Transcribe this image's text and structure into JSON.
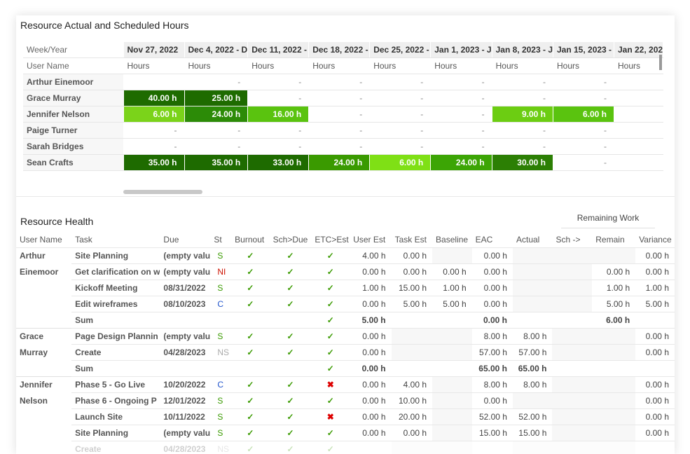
{
  "top": {
    "title": "Resource Actual and Scheduled Hours",
    "week_label": "Week/Year",
    "user_label": "User Name",
    "weeks": [
      "Nov 27, 2022",
      "Dec 4, 2022 - D",
      "Dec 11, 2022 - ",
      "Dec 18, 2022 - ",
      "Dec 25, 2022 - ",
      "Jan 1, 2023 - J",
      "Jan 8, 2023 - J",
      "Jan 15, 2023 - ",
      "Jan 22, 202"
    ],
    "hours_label": "Hours",
    "rows": [
      {
        "name": "Arthur Einemoor",
        "cells": [
          "",
          "-",
          "-",
          "-",
          "-",
          "-",
          "-",
          "-",
          ""
        ]
      },
      {
        "name": "Grace Murray",
        "cells": [
          "40.00 h",
          "25.00 h",
          "-",
          "-",
          "-",
          "-",
          "-",
          "-",
          ""
        ]
      },
      {
        "name": "Jennifer Nelson",
        "cells": [
          "6.00 h",
          "24.00 h",
          "16.00 h",
          "-",
          "-",
          "-",
          "9.00 h",
          "6.00 h",
          ""
        ]
      },
      {
        "name": "Paige Turner",
        "cells": [
          "-",
          "-",
          "-",
          "-",
          "-",
          "-",
          "-",
          "-",
          ""
        ]
      },
      {
        "name": "Sarah Bridges",
        "cells": [
          "-",
          "-",
          "-",
          "-",
          "-",
          "-",
          "-",
          "-",
          ""
        ]
      },
      {
        "name": "Sean Crafts",
        "cells": [
          "35.00 h",
          "35.00 h",
          "33.00 h",
          "24.00 h",
          "6.00 h",
          "24.00 h",
          "30.00 h",
          "-",
          ""
        ]
      }
    ],
    "cell_colors": [
      [
        "",
        "",
        "",
        "",
        "",
        "",
        "",
        "",
        ""
      ],
      [
        "#1e6b00",
        "#1e6b00",
        "",
        "",
        "",
        "",
        "",
        "",
        ""
      ],
      [
        "#7bd31a",
        "#2c8b07",
        "#5ac30f",
        "",
        "",
        "",
        "#6ccd12",
        "#5ac30f",
        ""
      ],
      [
        "",
        "",
        "",
        "",
        "",
        "",
        "",
        "",
        ""
      ],
      [
        "",
        "",
        "",
        "",
        "",
        "",
        "",
        "",
        ""
      ],
      [
        "#1e6b00",
        "#1e6b00",
        "#1e6b00",
        "#3a9a00",
        "#7fe015",
        "#3ca505",
        "#2c7f04",
        "",
        ""
      ]
    ]
  },
  "health": {
    "title": "Resource Health",
    "remaining_tab": "Remaining Work",
    "columns": [
      "User Name",
      "Task",
      "Due",
      "St",
      "Burnout",
      "Sch>Due",
      "ETC>Est",
      "User Est",
      "Task Est",
      "Baseline",
      "EAC",
      "Actual",
      "Sch ->",
      "Remain",
      "Variance"
    ],
    "groups": [
      {
        "user": [
          "Arthur",
          "Einemoor"
        ],
        "rows": [
          {
            "task": "Site Planning",
            "due": "(empty valu",
            "st": "S",
            "b": "✓",
            "sd": "✓",
            "ee": "✓",
            "ue": "4.00 h",
            "te": "0.00 h",
            "bl": "",
            "eac": "0.00 h",
            "act": "",
            "sch": "",
            "rem": "",
            "var": "0.00 h"
          },
          {
            "task": "Get clarification on w",
            "due": "(empty valu",
            "st": "NI",
            "b": "✓",
            "sd": "✓",
            "ee": "✓",
            "ue": "0.00 h",
            "te": "0.00 h",
            "bl": "0.00 h",
            "eac": "0.00 h",
            "act": "",
            "sch": "",
            "rem": "0.00 h",
            "var": "0.00 h"
          },
          {
            "task": "Kickoff Meeting",
            "due": "08/31/2022",
            "st": "S",
            "b": "✓",
            "sd": "✓",
            "ee": "✓",
            "ue": "1.00 h",
            "te": "15.00 h",
            "bl": "1.00 h",
            "eac": "0.00 h",
            "act": "",
            "sch": "",
            "rem": "1.00 h",
            "var": "1.00 h"
          },
          {
            "task": "Edit wireframes",
            "due": "08/10/2023",
            "st": "C",
            "b": "✓",
            "sd": "✓",
            "ee": "✓",
            "ue": "0.00 h",
            "te": "5.00 h",
            "bl": "5.00 h",
            "eac": "0.00 h",
            "act": "",
            "sch": "",
            "rem": "5.00 h",
            "var": "5.00 h"
          }
        ],
        "sum": {
          "label": "Sum",
          "ee": "✓",
          "ue": "5.00 h",
          "eac": "0.00 h",
          "act": "",
          "rem": "6.00 h"
        }
      },
      {
        "user": [
          "Grace",
          "Murray"
        ],
        "rows": [
          {
            "task": "Page Design Plannin",
            "due": "(empty valu",
            "st": "S",
            "b": "✓",
            "sd": "✓",
            "ee": "✓",
            "ue": "0.00 h",
            "te": "",
            "bl": "",
            "eac": "8.00 h",
            "act": "8.00 h",
            "sch": "",
            "rem": "",
            "var": "0.00 h"
          },
          {
            "task": "Create",
            "due": "04/28/2023",
            "st": "NS",
            "b": "✓",
            "sd": "✓",
            "ee": "✓",
            "ue": "0.00 h",
            "te": "",
            "bl": "",
            "eac": "57.00 h",
            "act": "57.00 h",
            "sch": "",
            "rem": "",
            "var": "0.00 h"
          }
        ],
        "sum": {
          "label": "Sum",
          "ee": "✓",
          "ue": "0.00 h",
          "eac": "65.00 h",
          "act": "65.00 h",
          "rem": ""
        }
      },
      {
        "user": [
          "Jennifer",
          "Nelson"
        ],
        "rows": [
          {
            "task": "Phase 5 - Go Live",
            "due": "10/20/2022",
            "st": "C",
            "b": "✓",
            "sd": "✓",
            "ee": "✖",
            "ue": "0.00 h",
            "te": "4.00 h",
            "bl": "",
            "eac": "8.00 h",
            "act": "8.00 h",
            "sch": "",
            "rem": "",
            "var": "0.00 h"
          },
          {
            "task": "Phase 6 - Ongoing P",
            "due": "12/01/2022",
            "st": "S",
            "b": "✓",
            "sd": "✓",
            "ee": "✓",
            "ue": "0.00 h",
            "te": "10.00 h",
            "bl": "",
            "eac": "0.00 h",
            "act": "",
            "sch": "",
            "rem": "",
            "var": "0.00 h"
          },
          {
            "task": "Launch Site",
            "due": "10/11/2022",
            "st": "S",
            "b": "✓",
            "sd": "✓",
            "ee": "✖",
            "ue": "0.00 h",
            "te": "20.00 h",
            "bl": "",
            "eac": "52.00 h",
            "act": "52.00 h",
            "sch": "",
            "rem": "",
            "var": "0.00 h"
          },
          {
            "task": "Site Planning",
            "due": "(empty valu",
            "st": "S",
            "b": "✓",
            "sd": "✓",
            "ee": "✓",
            "ue": "0.00 h",
            "te": "0.00 h",
            "bl": "",
            "eac": "15.00 h",
            "act": "15.00 h",
            "sch": "",
            "rem": "",
            "var": "0.00 h"
          },
          {
            "task": "Create",
            "due": "04/28/2023",
            "st": "NS",
            "b": "✓",
            "sd": "✓",
            "ee": "✓",
            "ue": "",
            "te": "",
            "bl": "",
            "eac": "",
            "act": "",
            "sch": "",
            "rem": "",
            "var": ""
          }
        ]
      }
    ]
  },
  "colors": {
    "dark_green": "#1e6b00",
    "light_green": "#7fe015",
    "check": "#3a9a00",
    "error": "#dd0000"
  }
}
